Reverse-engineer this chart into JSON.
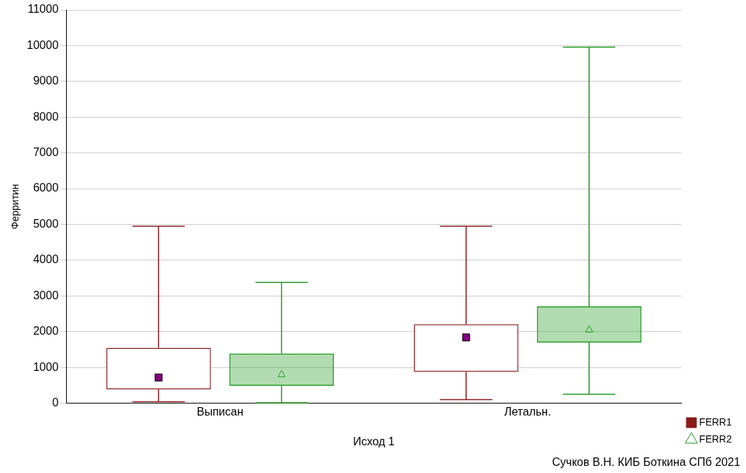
{
  "chart_data": {
    "type": "box",
    "xlabel": "Исход 1",
    "ylabel": "Ферритин",
    "categories": [
      "Выписан",
      "Летальн."
    ],
    "series": [
      {
        "name": "FERR1",
        "color": "#8b1a1a",
        "marker": "square",
        "boxes": [
          {
            "low": 40,
            "q1": 390,
            "median": 720,
            "q3": 1550,
            "high": 4950
          },
          {
            "low": 100,
            "q1": 880,
            "median": 1840,
            "q3": 2210,
            "high": 4950
          }
        ]
      },
      {
        "name": "FERR2",
        "color": "#1f9a1f",
        "marker": "triangle",
        "boxes": [
          {
            "low": 10,
            "q1": 490,
            "median": 820,
            "q3": 1390,
            "high": 3380
          },
          {
            "low": 250,
            "q1": 1700,
            "median": 2070,
            "q3": 2710,
            "high": 9960
          }
        ]
      }
    ],
    "ylim": [
      0,
      11000
    ],
    "yticks": [
      0,
      1000,
      2000,
      3000,
      4000,
      5000,
      6000,
      7000,
      8000,
      9000,
      10000,
      11000
    ],
    "grid": "y",
    "legend": "bottom right",
    "annotations": [
      "Сучков В.Н. КИБ Боткина СПб 2021"
    ]
  }
}
